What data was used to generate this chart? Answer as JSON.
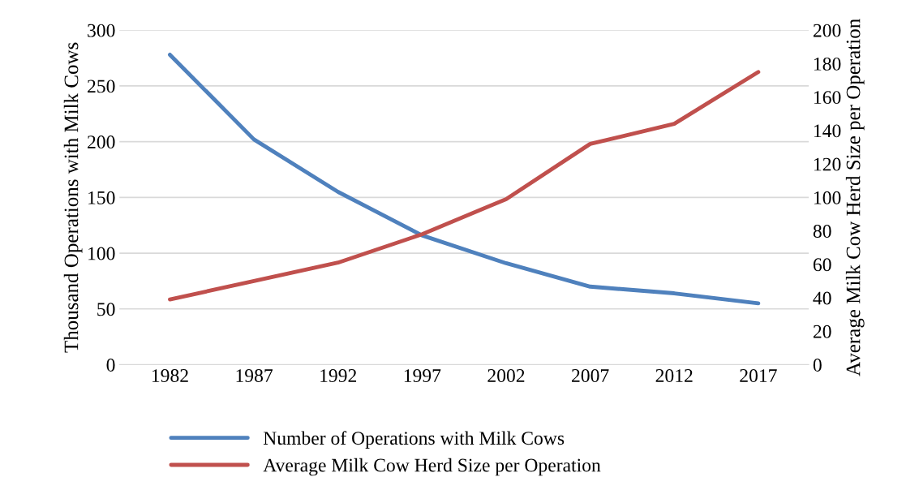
{
  "chart_data": {
    "type": "line",
    "ylabel": "Thousand Operations with Milk Cows",
    "y2label": "Average Milk Cow Herd Size per Operation",
    "categories": [
      "1982",
      "1987",
      "1992",
      "1997",
      "2002",
      "2007",
      "2012",
      "2017"
    ],
    "series": [
      {
        "name": "Number of Operations with Milk Cows",
        "color": "#4f81bd",
        "values": [
          278,
          202,
          155,
          116,
          91,
          70,
          64,
          55
        ]
      },
      {
        "name": "Average Milk Cow Herd Size per Operation",
        "color": "#c0504d",
        "axis": "y2",
        "values": [
          39,
          50,
          61,
          78,
          99,
          132,
          144,
          175
        ]
      }
    ],
    "ylim": [
      0,
      300
    ],
    "yticks": [
      0,
      50,
      100,
      150,
      200,
      250,
      300
    ],
    "y2lim": [
      0,
      200
    ],
    "y2ticks": [
      0,
      20,
      40,
      60,
      80,
      100,
      120,
      140,
      160,
      180,
      200
    ],
    "grid": "y",
    "legend": "bottom",
    "marker": "none",
    "line_style": "solid"
  }
}
